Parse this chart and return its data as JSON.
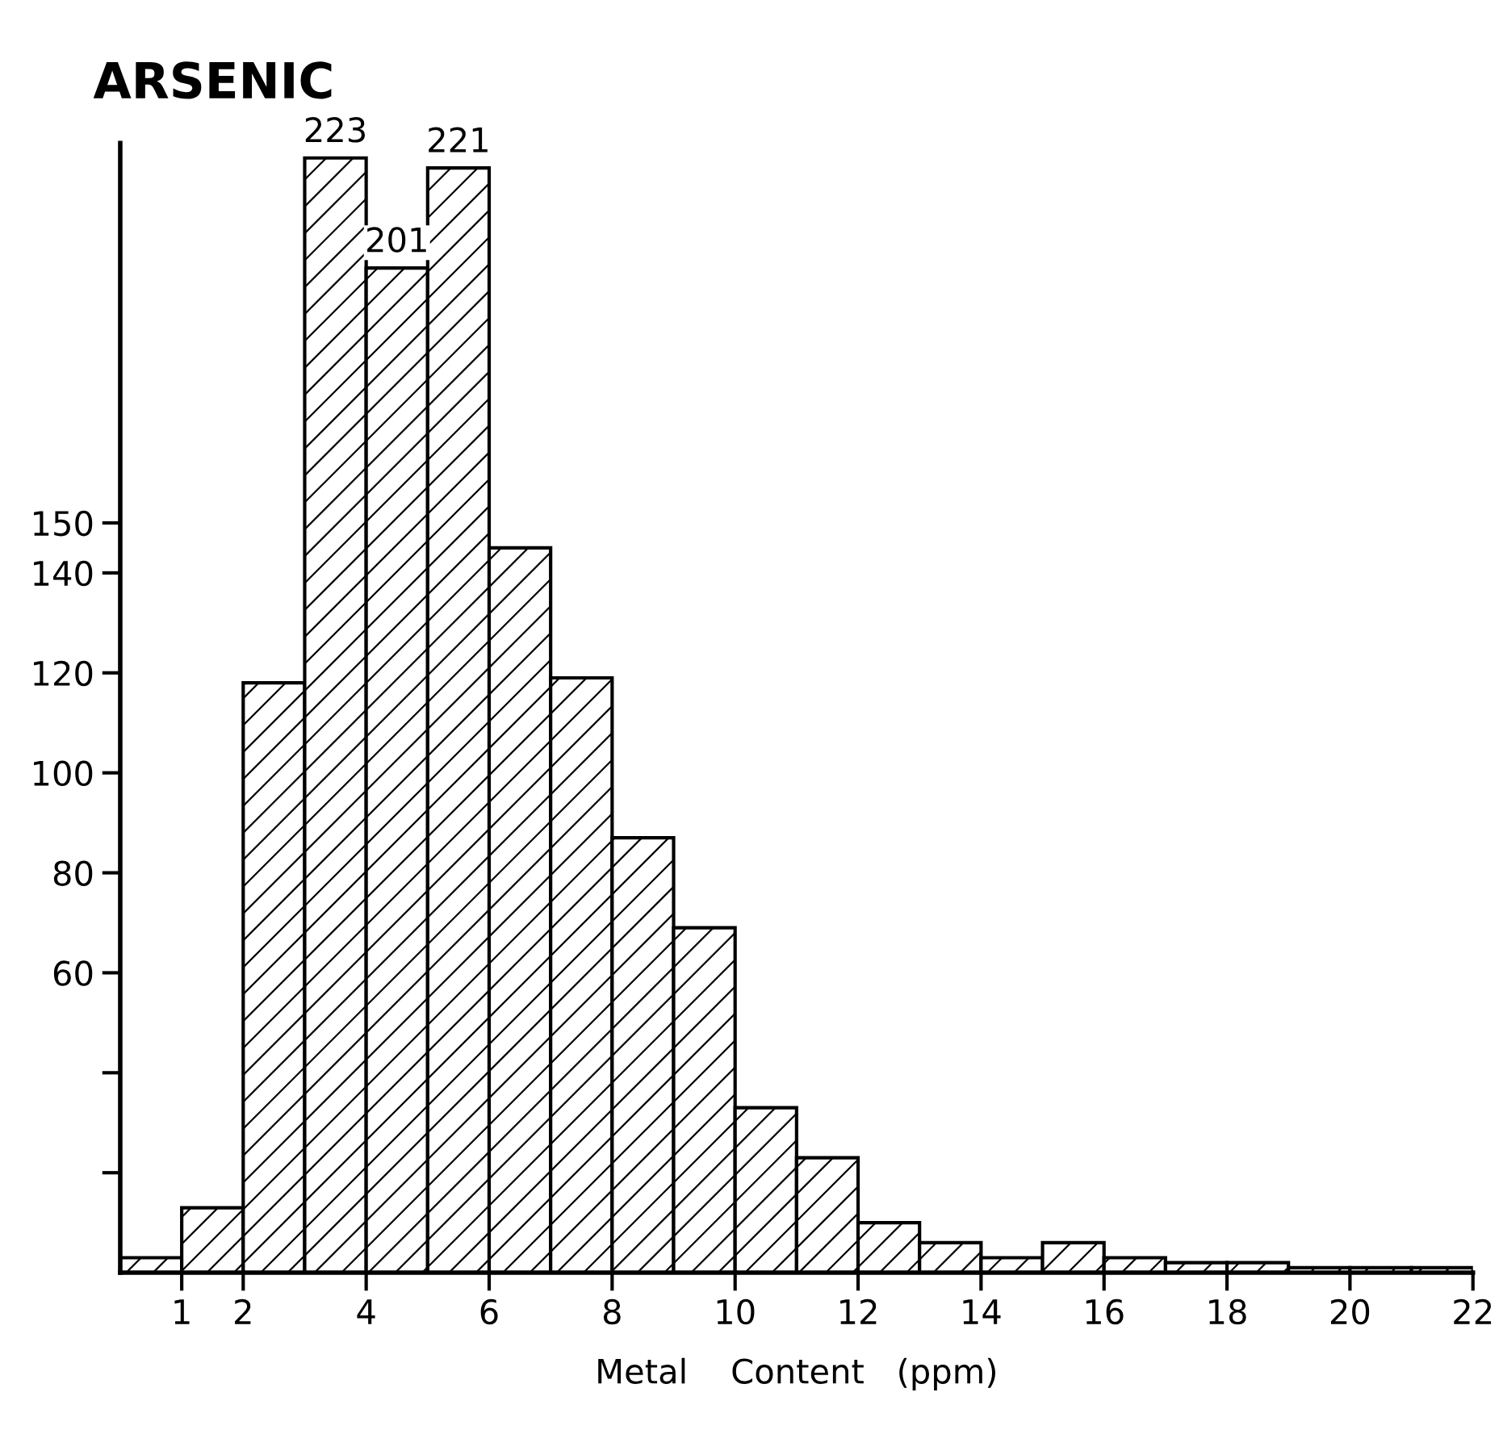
{
  "chart_data": {
    "type": "histogram",
    "title": "ARSENIC",
    "xlabel": "Metal    Content   (ppm)",
    "bins": [
      0,
      1,
      2,
      3,
      4,
      5,
      6,
      7,
      8,
      9,
      10,
      11,
      12,
      13,
      14,
      15,
      16,
      17,
      18,
      19,
      20,
      21,
      22
    ],
    "values": [
      3,
      13,
      118,
      223,
      201,
      221,
      145,
      119,
      87,
      69,
      33,
      23,
      10,
      6,
      3,
      6,
      3,
      2,
      2,
      1,
      1,
      1
    ],
    "value_labels": [
      null,
      null,
      null,
      "223",
      "201",
      "221",
      null,
      null,
      null,
      null,
      null,
      null,
      null,
      null,
      null,
      null,
      null,
      null,
      null,
      null,
      null,
      null
    ],
    "xlim": [
      0,
      22
    ],
    "ylim": [
      0,
      226
    ],
    "xticks": [
      1,
      2,
      4,
      6,
      8,
      10,
      12,
      14,
      16,
      18,
      20,
      22
    ],
    "yticks": [
      {
        "value": 20,
        "label": null
      },
      {
        "value": 40,
        "label": null
      },
      60,
      80,
      100,
      120,
      140,
      150
    ],
    "grid": false
  }
}
